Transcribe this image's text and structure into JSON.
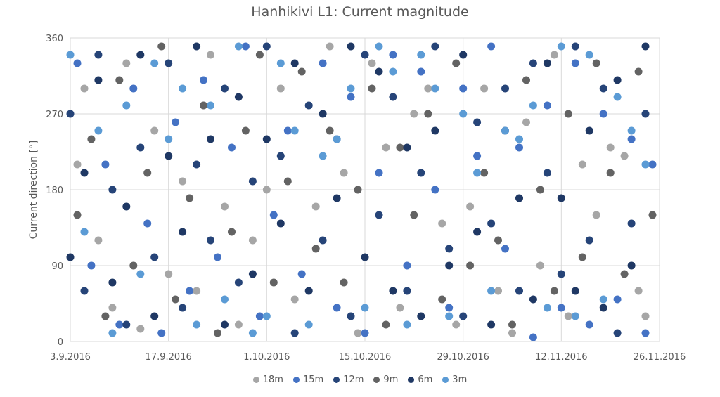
{
  "chart_data": {
    "type": "scatter",
    "title": "Hanhikivi L1: Current magnitude",
    "xlabel": "",
    "ylabel": "Current direction [°]",
    "x_range": [
      "2016-09-03",
      "2016-11-26"
    ],
    "x_tick_labels": [
      "3.9.2016",
      "17.9.2016",
      "1.10.2016",
      "15.10.2016",
      "29.10.2016",
      "12.11.2016",
      "26.11.2016"
    ],
    "ylim": [
      0,
      360
    ],
    "y_ticks": [
      0,
      90,
      180,
      270,
      360
    ],
    "grid": "horizontal and vertical",
    "legend_position": "bottom",
    "series": [
      {
        "name": "18m",
        "color": "#a6a6a6",
        "points": [
          [
            "2016-09-04",
            210
          ],
          [
            "2016-09-05",
            300
          ],
          [
            "2016-09-07",
            120
          ],
          [
            "2016-09-09",
            40
          ],
          [
            "2016-09-11",
            330
          ],
          [
            "2016-09-13",
            15
          ],
          [
            "2016-09-15",
            250
          ],
          [
            "2016-09-17",
            80
          ],
          [
            "2016-09-19",
            190
          ],
          [
            "2016-09-21",
            60
          ],
          [
            "2016-09-23",
            340
          ],
          [
            "2016-09-25",
            160
          ],
          [
            "2016-09-27",
            20
          ],
          [
            "2016-09-29",
            120
          ],
          [
            "2016-10-01",
            180
          ],
          [
            "2016-10-03",
            300
          ],
          [
            "2016-10-05",
            50
          ],
          [
            "2016-10-08",
            160
          ],
          [
            "2016-10-10",
            350
          ],
          [
            "2016-10-12",
            200
          ],
          [
            "2016-10-14",
            10
          ],
          [
            "2016-10-16",
            330
          ],
          [
            "2016-10-18",
            230
          ],
          [
            "2016-10-20",
            40
          ],
          [
            "2016-10-22",
            270
          ],
          [
            "2016-10-24",
            300
          ],
          [
            "2016-10-26",
            140
          ],
          [
            "2016-10-28",
            20
          ],
          [
            "2016-10-30",
            160
          ],
          [
            "2016-11-01",
            300
          ],
          [
            "2016-11-03",
            60
          ],
          [
            "2016-11-05",
            10
          ],
          [
            "2016-11-07",
            260
          ],
          [
            "2016-11-09",
            90
          ],
          [
            "2016-11-11",
            340
          ],
          [
            "2016-11-13",
            30
          ],
          [
            "2016-11-15",
            210
          ],
          [
            "2016-11-17",
            150
          ],
          [
            "2016-11-19",
            230
          ],
          [
            "2016-11-21",
            220
          ],
          [
            "2016-11-23",
            60
          ],
          [
            "2016-11-24",
            30
          ]
        ]
      },
      {
        "name": "15m",
        "color": "#4472c4",
        "points": [
          [
            "2016-09-04",
            330
          ],
          [
            "2016-09-06",
            90
          ],
          [
            "2016-09-08",
            210
          ],
          [
            "2016-09-10",
            20
          ],
          [
            "2016-09-12",
            300
          ],
          [
            "2016-09-14",
            140
          ],
          [
            "2016-09-16",
            10
          ],
          [
            "2016-09-18",
            260
          ],
          [
            "2016-09-20",
            60
          ],
          [
            "2016-09-22",
            310
          ],
          [
            "2016-09-24",
            100
          ],
          [
            "2016-09-26",
            230
          ],
          [
            "2016-09-28",
            350
          ],
          [
            "2016-09-30",
            30
          ],
          [
            "2016-10-02",
            150
          ],
          [
            "2016-10-04",
            250
          ],
          [
            "2016-10-06",
            80
          ],
          [
            "2016-10-09",
            330
          ],
          [
            "2016-10-11",
            40
          ],
          [
            "2016-10-13",
            290
          ],
          [
            "2016-10-15",
            10
          ],
          [
            "2016-10-17",
            200
          ],
          [
            "2016-10-19",
            340
          ],
          [
            "2016-10-21",
            90
          ],
          [
            "2016-10-23",
            320
          ],
          [
            "2016-10-25",
            180
          ],
          [
            "2016-10-27",
            40
          ],
          [
            "2016-10-29",
            300
          ],
          [
            "2016-10-31",
            220
          ],
          [
            "2016-11-02",
            350
          ],
          [
            "2016-11-04",
            110
          ],
          [
            "2016-11-06",
            230
          ],
          [
            "2016-11-08",
            5
          ],
          [
            "2016-11-10",
            280
          ],
          [
            "2016-11-12",
            40
          ],
          [
            "2016-11-14",
            330
          ],
          [
            "2016-11-16",
            20
          ],
          [
            "2016-11-18",
            270
          ],
          [
            "2016-11-20",
            50
          ],
          [
            "2016-11-22",
            240
          ],
          [
            "2016-11-24",
            10
          ],
          [
            "2016-11-25",
            210
          ]
        ]
      },
      {
        "name": "12m",
        "color": "#264478",
        "points": [
          [
            "2016-09-03",
            270
          ],
          [
            "2016-09-05",
            60
          ],
          [
            "2016-09-07",
            340
          ],
          [
            "2016-09-09",
            180
          ],
          [
            "2016-09-11",
            20
          ],
          [
            "2016-09-13",
            230
          ],
          [
            "2016-09-15",
            100
          ],
          [
            "2016-09-17",
            330
          ],
          [
            "2016-09-19",
            40
          ],
          [
            "2016-09-21",
            210
          ],
          [
            "2016-09-23",
            120
          ],
          [
            "2016-09-25",
            300
          ],
          [
            "2016-09-27",
            70
          ],
          [
            "2016-09-29",
            190
          ],
          [
            "2016-10-01",
            350
          ],
          [
            "2016-10-03",
            220
          ],
          [
            "2016-10-05",
            10
          ],
          [
            "2016-10-07",
            280
          ],
          [
            "2016-10-09",
            120
          ],
          [
            "2016-10-11",
            240
          ],
          [
            "2016-10-13",
            30
          ],
          [
            "2016-10-15",
            340
          ],
          [
            "2016-10-17",
            150
          ],
          [
            "2016-10-19",
            290
          ],
          [
            "2016-10-21",
            60
          ],
          [
            "2016-10-23",
            200
          ],
          [
            "2016-10-25",
            350
          ],
          [
            "2016-10-27",
            110
          ],
          [
            "2016-10-29",
            30
          ],
          [
            "2016-10-31",
            260
          ],
          [
            "2016-11-02",
            140
          ],
          [
            "2016-11-04",
            300
          ],
          [
            "2016-11-06",
            60
          ],
          [
            "2016-11-08",
            330
          ],
          [
            "2016-11-10",
            200
          ],
          [
            "2016-11-12",
            80
          ],
          [
            "2016-11-14",
            350
          ],
          [
            "2016-11-16",
            120
          ],
          [
            "2016-11-18",
            300
          ],
          [
            "2016-11-20",
            10
          ],
          [
            "2016-11-22",
            140
          ],
          [
            "2016-11-24",
            270
          ]
        ]
      },
      {
        "name": "9m",
        "color": "#636363",
        "points": [
          [
            "2016-09-04",
            150
          ],
          [
            "2016-09-06",
            240
          ],
          [
            "2016-09-08",
            30
          ],
          [
            "2016-09-10",
            310
          ],
          [
            "2016-09-12",
            90
          ],
          [
            "2016-09-14",
            200
          ],
          [
            "2016-09-16",
            350
          ],
          [
            "2016-09-18",
            50
          ],
          [
            "2016-09-20",
            170
          ],
          [
            "2016-09-22",
            280
          ],
          [
            "2016-09-24",
            10
          ],
          [
            "2016-09-26",
            130
          ],
          [
            "2016-09-28",
            250
          ],
          [
            "2016-09-30",
            340
          ],
          [
            "2016-10-02",
            70
          ],
          [
            "2016-10-04",
            190
          ],
          [
            "2016-10-06",
            320
          ],
          [
            "2016-10-08",
            110
          ],
          [
            "2016-10-10",
            250
          ],
          [
            "2016-10-12",
            70
          ],
          [
            "2016-10-14",
            180
          ],
          [
            "2016-10-16",
            300
          ],
          [
            "2016-10-18",
            20
          ],
          [
            "2016-10-20",
            230
          ],
          [
            "2016-10-22",
            150
          ],
          [
            "2016-10-24",
            270
          ],
          [
            "2016-10-26",
            50
          ],
          [
            "2016-10-28",
            330
          ],
          [
            "2016-10-30",
            90
          ],
          [
            "2016-11-01",
            200
          ],
          [
            "2016-11-03",
            120
          ],
          [
            "2016-11-05",
            20
          ],
          [
            "2016-11-07",
            310
          ],
          [
            "2016-11-09",
            180
          ],
          [
            "2016-11-11",
            60
          ],
          [
            "2016-11-13",
            270
          ],
          [
            "2016-11-15",
            100
          ],
          [
            "2016-11-17",
            330
          ],
          [
            "2016-11-19",
            200
          ],
          [
            "2016-11-21",
            80
          ],
          [
            "2016-11-23",
            320
          ],
          [
            "2016-11-25",
            150
          ]
        ]
      },
      {
        "name": "6m",
        "color": "#1f3864",
        "points": [
          [
            "2016-09-03",
            100
          ],
          [
            "2016-09-05",
            200
          ],
          [
            "2016-09-07",
            310
          ],
          [
            "2016-09-09",
            70
          ],
          [
            "2016-09-11",
            160
          ],
          [
            "2016-09-13",
            340
          ],
          [
            "2016-09-15",
            30
          ],
          [
            "2016-09-17",
            220
          ],
          [
            "2016-09-19",
            130
          ],
          [
            "2016-09-21",
            350
          ],
          [
            "2016-09-23",
            240
          ],
          [
            "2016-09-25",
            20
          ],
          [
            "2016-09-27",
            290
          ],
          [
            "2016-09-29",
            80
          ],
          [
            "2016-10-01",
            240
          ],
          [
            "2016-10-03",
            140
          ],
          [
            "2016-10-05",
            330
          ],
          [
            "2016-10-07",
            60
          ],
          [
            "2016-10-09",
            270
          ],
          [
            "2016-10-11",
            170
          ],
          [
            "2016-10-13",
            350
          ],
          [
            "2016-10-15",
            100
          ],
          [
            "2016-10-17",
            320
          ],
          [
            "2016-10-19",
            60
          ],
          [
            "2016-10-21",
            230
          ],
          [
            "2016-10-23",
            30
          ],
          [
            "2016-10-25",
            250
          ],
          [
            "2016-10-27",
            90
          ],
          [
            "2016-10-29",
            340
          ],
          [
            "2016-10-31",
            130
          ],
          [
            "2016-11-02",
            20
          ],
          [
            "2016-11-04",
            250
          ],
          [
            "2016-11-06",
            170
          ],
          [
            "2016-11-08",
            50
          ],
          [
            "2016-11-10",
            330
          ],
          [
            "2016-11-12",
            170
          ],
          [
            "2016-11-14",
            60
          ],
          [
            "2016-11-16",
            250
          ],
          [
            "2016-11-18",
            40
          ],
          [
            "2016-11-20",
            310
          ],
          [
            "2016-11-22",
            90
          ],
          [
            "2016-11-24",
            350
          ]
        ]
      },
      {
        "name": "3m",
        "color": "#5b9bd5",
        "points": [
          [
            "2016-09-03",
            340
          ],
          [
            "2016-09-05",
            130
          ],
          [
            "2016-09-07",
            250
          ],
          [
            "2016-09-09",
            10
          ],
          [
            "2016-09-11",
            280
          ],
          [
            "2016-09-13",
            80
          ],
          [
            "2016-09-15",
            330
          ],
          [
            "2016-09-17",
            240
          ],
          [
            "2016-09-19",
            300
          ],
          [
            "2016-09-21",
            20
          ],
          [
            "2016-09-23",
            280
          ],
          [
            "2016-09-25",
            50
          ],
          [
            "2016-09-27",
            350
          ],
          [
            "2016-09-29",
            10
          ],
          [
            "2016-10-01",
            30
          ],
          [
            "2016-10-03",
            330
          ],
          [
            "2016-10-05",
            250
          ],
          [
            "2016-10-07",
            20
          ],
          [
            "2016-10-09",
            220
          ],
          [
            "2016-10-11",
            240
          ],
          [
            "2016-10-13",
            300
          ],
          [
            "2016-10-15",
            40
          ],
          [
            "2016-10-17",
            350
          ],
          [
            "2016-10-19",
            320
          ],
          [
            "2016-10-21",
            20
          ],
          [
            "2016-10-23",
            340
          ],
          [
            "2016-10-25",
            300
          ],
          [
            "2016-10-27",
            30
          ],
          [
            "2016-10-29",
            270
          ],
          [
            "2016-10-31",
            200
          ],
          [
            "2016-11-02",
            60
          ],
          [
            "2016-11-04",
            250
          ],
          [
            "2016-11-06",
            240
          ],
          [
            "2016-11-08",
            280
          ],
          [
            "2016-11-10",
            40
          ],
          [
            "2016-11-12",
            350
          ],
          [
            "2016-11-14",
            30
          ],
          [
            "2016-11-16",
            340
          ],
          [
            "2016-11-18",
            50
          ],
          [
            "2016-11-20",
            290
          ],
          [
            "2016-11-22",
            250
          ],
          [
            "2016-11-24",
            210
          ]
        ]
      }
    ]
  }
}
